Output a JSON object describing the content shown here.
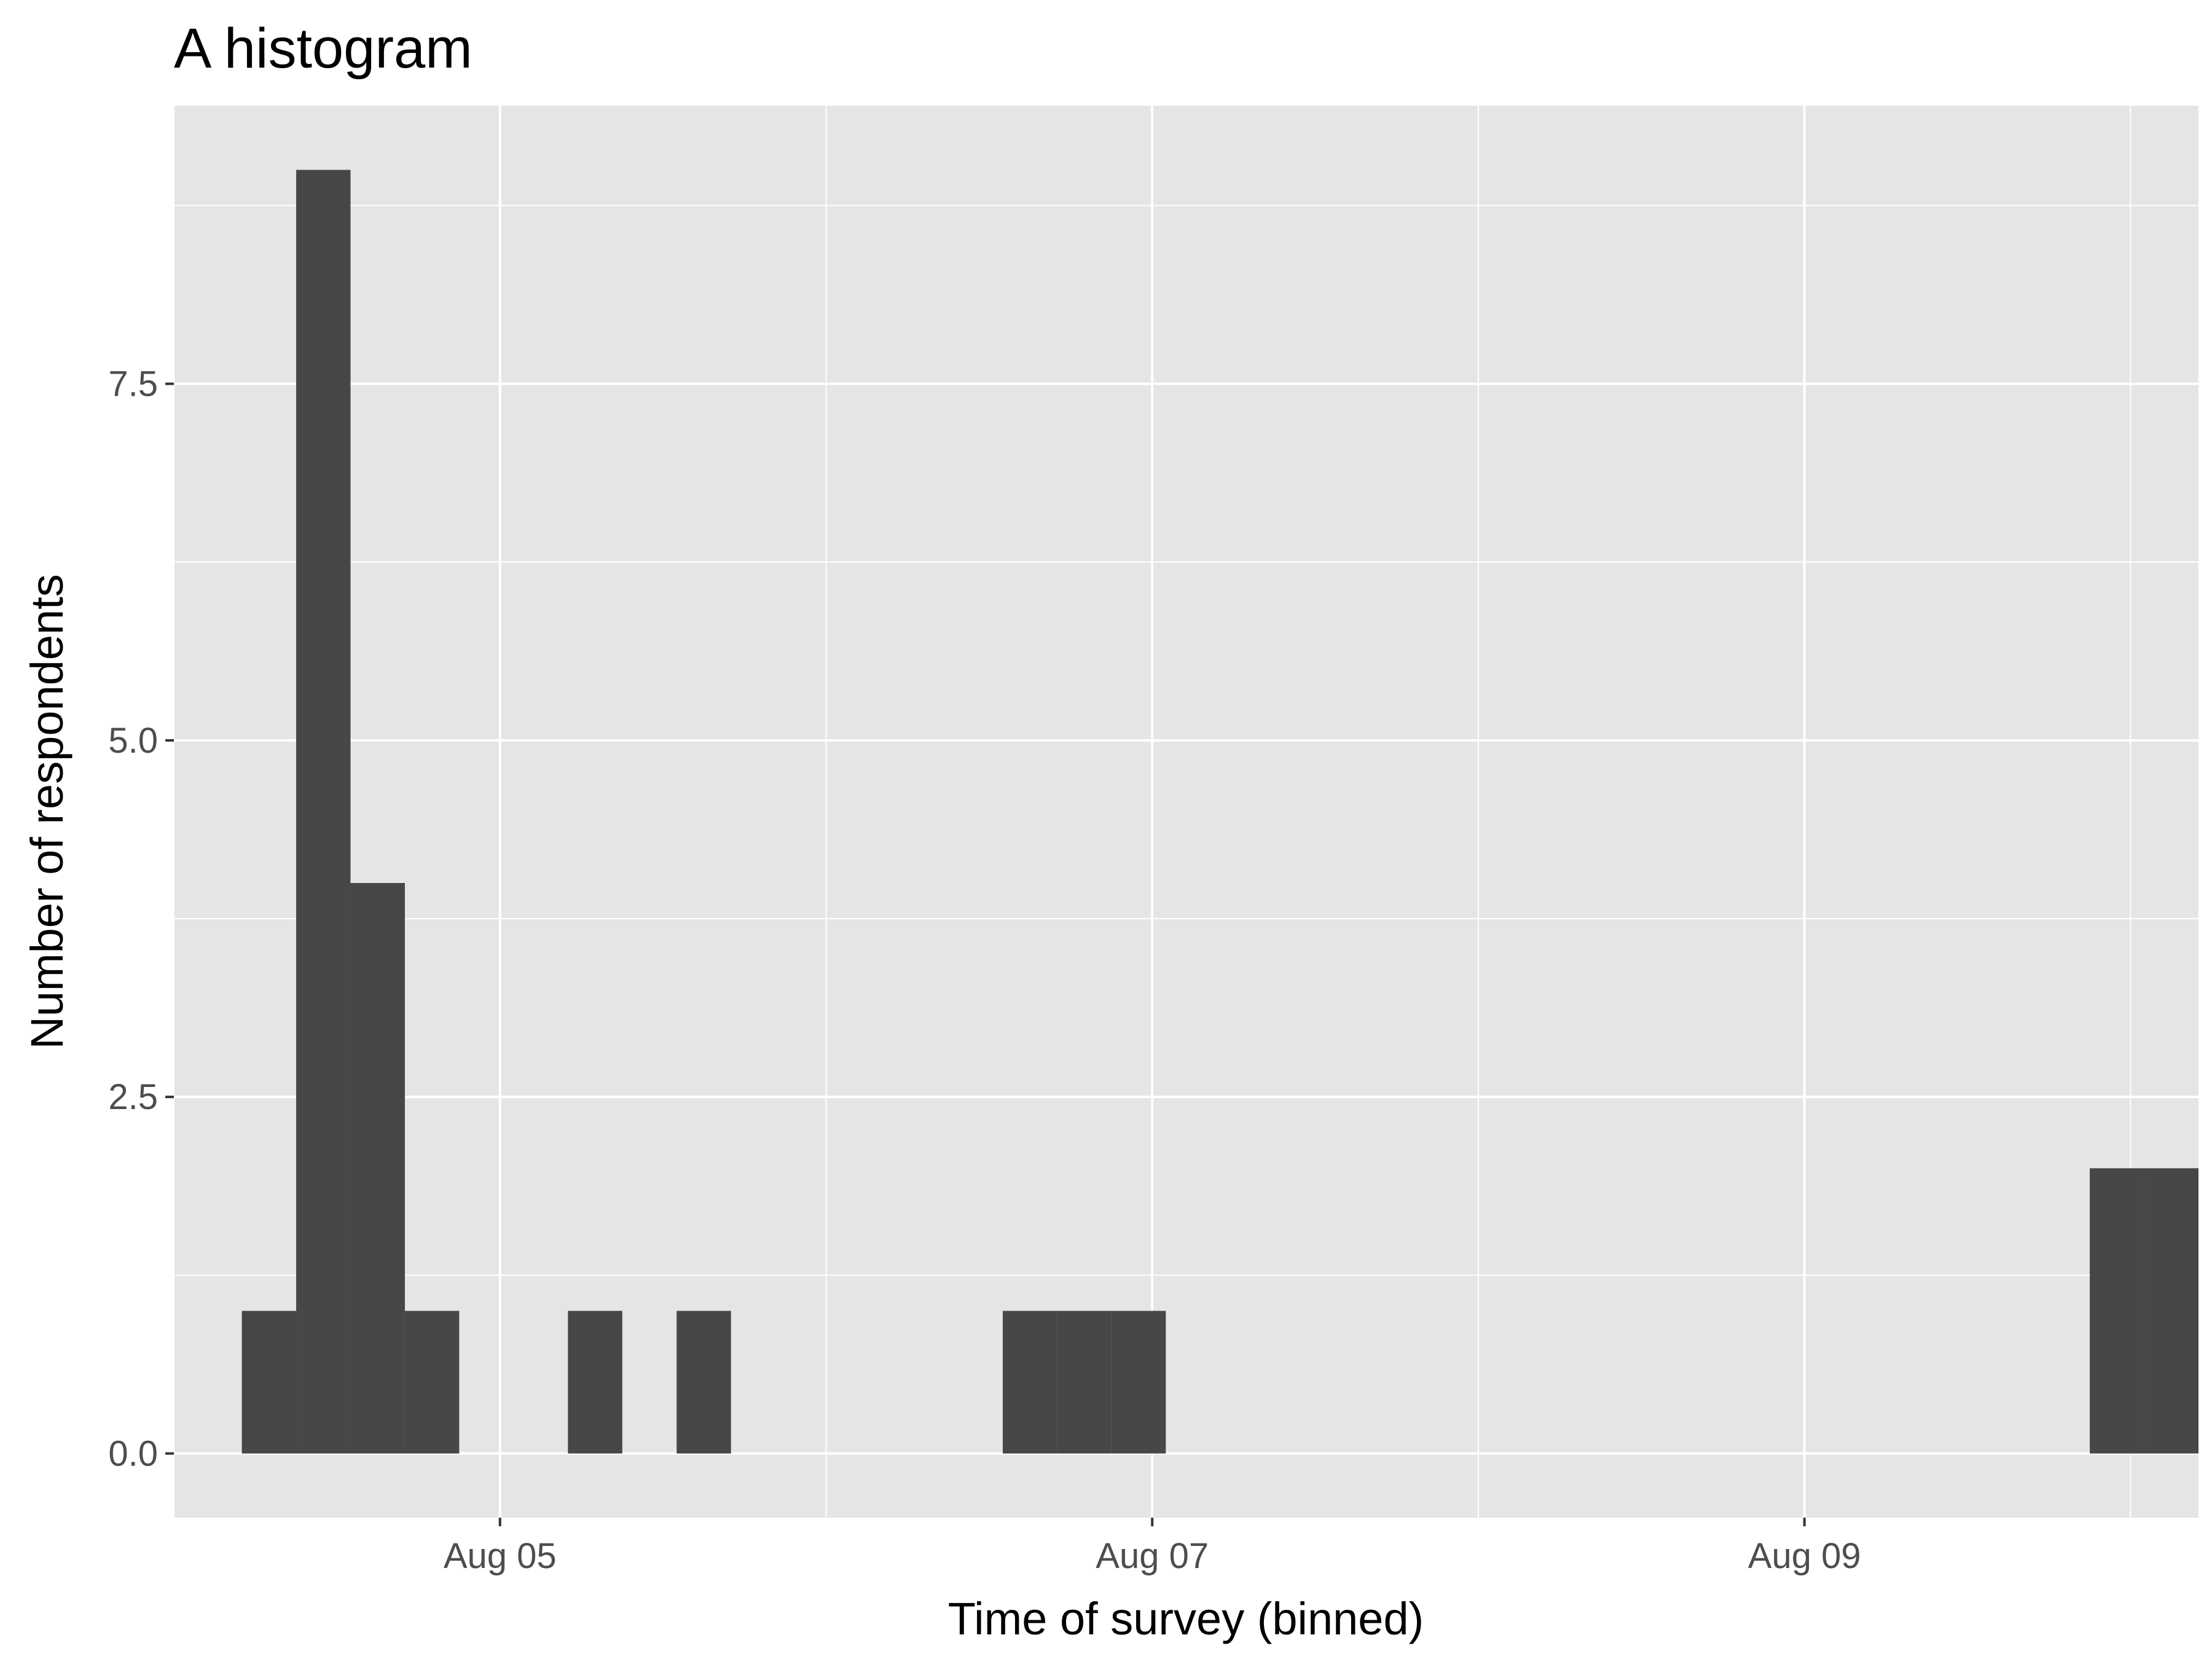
{
  "chart_data": {
    "type": "bar",
    "title": "A histogram",
    "xlabel": "Time of survey (binned)",
    "ylabel": "Number of respondents",
    "bin_width_hours": 4,
    "x": [
      "Aug 04 03:00",
      "Aug 04 07:00",
      "Aug 04 11:00",
      "Aug 04 15:00",
      "Aug 04 19:00",
      "Aug 04 23:00",
      "Aug 05 03:00",
      "Aug 05 07:00",
      "Aug 05 11:00",
      "Aug 05 15:00",
      "Aug 05 19:00",
      "Aug 05 23:00",
      "Aug 06 03:00",
      "Aug 06 07:00",
      "Aug 06 11:00",
      "Aug 06 15:00",
      "Aug 06 19:00",
      "Aug 06 23:00",
      "Aug 07 03:00",
      "Aug 07 07:00",
      "Aug 07 11:00",
      "Aug 07 15:00",
      "Aug 07 19:00",
      "Aug 07 23:00",
      "Aug 08 03:00",
      "Aug 08 07:00",
      "Aug 08 11:00",
      "Aug 08 15:00",
      "Aug 08 19:00",
      "Aug 08 23:00",
      "Aug 09 03:00",
      "Aug 09 07:00",
      "Aug 09 11:00",
      "Aug 09 15:00",
      "Aug 09 19:00",
      "Aug 09 23:00",
      "Aug 10 03:00"
    ],
    "values": [
      0,
      1,
      9,
      4,
      1,
      0,
      0,
      1,
      0,
      1,
      0,
      0,
      0,
      0,
      0,
      1,
      1,
      1,
      0,
      0,
      0,
      0,
      0,
      0,
      0,
      0,
      0,
      0,
      0,
      0,
      0,
      0,
      0,
      0,
      0,
      2,
      2
    ],
    "x_range": [
      "Aug 04 00:00",
      "Aug 10 05:00"
    ],
    "x_ticks": [
      {
        "label": "Aug 05",
        "value": "Aug 05 00:00"
      },
      {
        "label": "Aug 07",
        "value": "Aug 07 00:00"
      },
      {
        "label": "Aug 09",
        "value": "Aug 09 00:00"
      }
    ],
    "x_minor_ticks": [
      "Aug 04 00:00",
      "Aug 06 00:00",
      "Aug 08 00:00",
      "Aug 10 00:00"
    ],
    "ylim": [
      -0.45,
      9.45
    ],
    "y_ticks": [
      "0.0",
      "2.5",
      "5.0",
      "7.5"
    ],
    "y_minor_ticks": [
      "1.25",
      "3.75",
      "6.25",
      "8.75"
    ],
    "grid": true,
    "bar_color": "#474747",
    "panel_color": "#e5e5e5",
    "grid_color": "#ffffff"
  }
}
